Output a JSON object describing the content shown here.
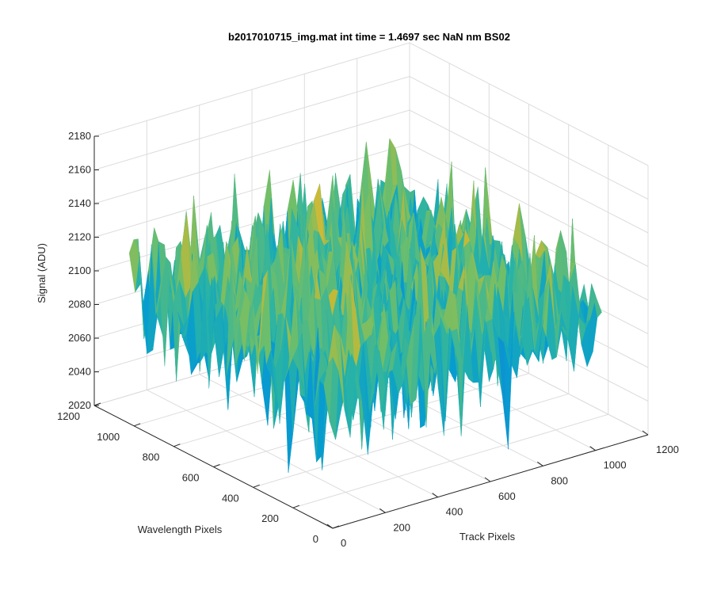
{
  "chart_data": {
    "type": "surface",
    "title": "b2017010715_img.mat int time = 1.4697 sec  NaN nm BS02",
    "xlabel": "Track Pixels",
    "ylabel": "Wavelength Pixels",
    "zlabel": "Signal (ADU)",
    "x_ticks": [
      "0",
      "200",
      "400",
      "600",
      "800",
      "1000",
      "1200"
    ],
    "y_ticks": [
      "0",
      "200",
      "400",
      "600",
      "800",
      "1000",
      "1200"
    ],
    "z_ticks": [
      "2020",
      "2040",
      "2060",
      "2080",
      "2100",
      "2120",
      "2140",
      "2160",
      "2180"
    ],
    "xlim": [
      0,
      1200
    ],
    "ylim": [
      0,
      1200
    ],
    "zlim": [
      2020,
      2180
    ],
    "x_range": [
      0,
      1024
    ],
    "y_range": [
      0,
      1024
    ],
    "z_typical_range": [
      2040,
      2160
    ],
    "z_mean": 2100,
    "grid": true,
    "colormap": "parula",
    "view": "3d"
  }
}
